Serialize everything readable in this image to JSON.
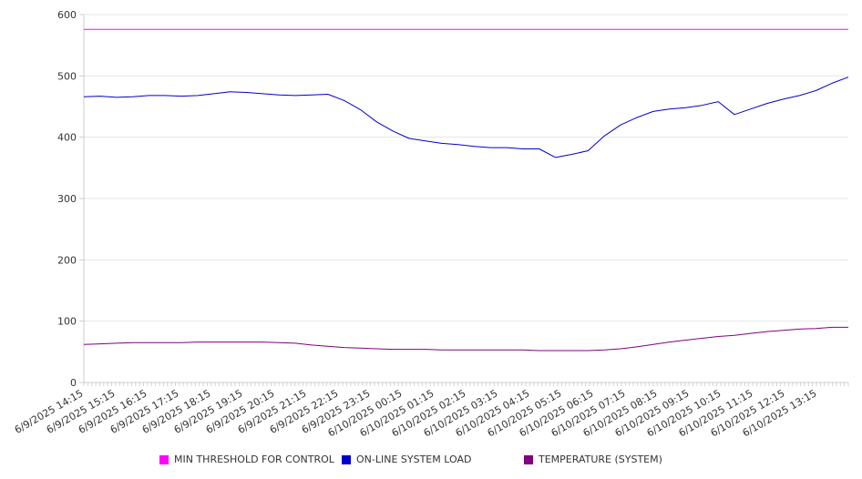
{
  "chart_data": {
    "type": "line",
    "title": "",
    "xlabel": "",
    "ylabel": "",
    "ylim": [
      0,
      600
    ],
    "yticks": [
      0,
      100,
      200,
      300,
      400,
      500,
      600
    ],
    "grid": true,
    "legend_position": "bottom",
    "x_tick_labels": [
      "6/9/2025 14:15",
      "6/9/2025 15:15",
      "6/9/2025 16:15",
      "6/9/2025 17:15",
      "6/9/2025 18:15",
      "6/9/2025 19:15",
      "6/9/2025 20:15",
      "6/9/2025 21:15",
      "6/9/2025 22:15",
      "6/9/2025 23:15",
      "6/10/2025 00:15",
      "6/10/2025 01:15",
      "6/10/2025 02:15",
      "6/10/2025 03:15",
      "6/10/2025 04:15",
      "6/10/2025 05:15",
      "6/10/2025 06:15",
      "6/10/2025 07:15",
      "6/10/2025 08:15",
      "6/10/2025 09:15",
      "6/10/2025 10:15",
      "6/10/2025 11:15",
      "6/10/2025 12:15",
      "6/10/2025 13:15"
    ],
    "x": [
      "6/9/2025 14:15",
      "6/9/2025 14:45",
      "6/9/2025 15:15",
      "6/9/2025 15:45",
      "6/9/2025 16:15",
      "6/9/2025 16:45",
      "6/9/2025 17:15",
      "6/9/2025 17:45",
      "6/9/2025 18:15",
      "6/9/2025 18:45",
      "6/9/2025 19:15",
      "6/9/2025 19:45",
      "6/9/2025 20:15",
      "6/9/2025 20:45",
      "6/9/2025 21:15",
      "6/9/2025 21:45",
      "6/9/2025 22:15",
      "6/9/2025 22:45",
      "6/9/2025 23:15",
      "6/9/2025 23:45",
      "6/10/2025 00:15",
      "6/10/2025 00:45",
      "6/10/2025 01:15",
      "6/10/2025 01:45",
      "6/10/2025 02:15",
      "6/10/2025 02:45",
      "6/10/2025 03:15",
      "6/10/2025 03:45",
      "6/10/2025 04:15",
      "6/10/2025 04:45",
      "6/10/2025 05:15",
      "6/10/2025 05:45",
      "6/10/2025 06:15",
      "6/10/2025 06:45",
      "6/10/2025 07:15",
      "6/10/2025 07:45",
      "6/10/2025 08:15",
      "6/10/2025 08:45",
      "6/10/2025 09:15",
      "6/10/2025 09:45",
      "6/10/2025 10:15",
      "6/10/2025 10:45",
      "6/10/2025 11:15",
      "6/10/2025 11:45",
      "6/10/2025 12:15",
      "6/10/2025 12:45",
      "6/10/2025 13:15",
      "6/10/2025 13:45"
    ],
    "series": [
      {
        "name": "MIN THRESHOLD FOR CONTROL",
        "color": "#ff00ff",
        "values": [
          576,
          576,
          576,
          576,
          576,
          576,
          576,
          576,
          576,
          576,
          576,
          576,
          576,
          576,
          576,
          576,
          576,
          576,
          576,
          576,
          576,
          576,
          576,
          576,
          576,
          576,
          576,
          576,
          576,
          576,
          576,
          576,
          576,
          576,
          576,
          576,
          576,
          576,
          576,
          576,
          576,
          576,
          576,
          576,
          576,
          576,
          576,
          576
        ]
      },
      {
        "name": "ON-LINE SYSTEM LOAD",
        "color": "#0000cc",
        "values": [
          466,
          467,
          465,
          466,
          468,
          468,
          467,
          468,
          471,
          474,
          473,
          471,
          469,
          468,
          469,
          470,
          460,
          445,
          425,
          410,
          398,
          394,
          390,
          388,
          385,
          383,
          383,
          381,
          381,
          367,
          372,
          378,
          402,
          420,
          432,
          442,
          446,
          448,
          452,
          458,
          437,
          446,
          455,
          462,
          468,
          476,
          488,
          498
        ]
      },
      {
        "name": "TEMPERATURE (SYSTEM)",
        "color": "#800080",
        "values": [
          62,
          63,
          64,
          65,
          65,
          65,
          65,
          66,
          66,
          66,
          66,
          66,
          65,
          64,
          61,
          59,
          57,
          56,
          55,
          54,
          54,
          54,
          53,
          53,
          53,
          53,
          53,
          53,
          52,
          52,
          52,
          52,
          53,
          55,
          58,
          62,
          66,
          69,
          72,
          75,
          77,
          80,
          83,
          85,
          87,
          88,
          90,
          90
        ]
      }
    ]
  }
}
